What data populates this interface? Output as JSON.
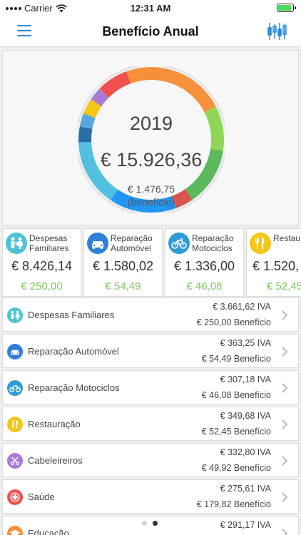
{
  "status_bar": {
    "carrier": "Carrier",
    "time": "12:31 AM"
  },
  "nav": {
    "title": "Benefício Anual",
    "menu_icon": "hamburger-menu-icon",
    "chart_icon": "candlestick-chart-icon"
  },
  "summary": {
    "year": "2019",
    "total": "€ 15.926,36",
    "benefit": "€ 1.476,75",
    "benefit_label": "(benefício)",
    "segments": [
      {
        "color": "#f7903a",
        "value": 23
      },
      {
        "color": "#8ed656",
        "value": 10
      },
      {
        "color": "#5cb85c",
        "value": 13
      },
      {
        "color": "#d9534f",
        "value": 4
      },
      {
        "color": "#2196f3",
        "value": 15
      },
      {
        "color": "#52c1e0",
        "value": 15
      },
      {
        "color": "#2c6fa6",
        "value": 3.5
      },
      {
        "color": "#59a9e0",
        "value": 3
      },
      {
        "color": "#f5c518",
        "value": 3.5
      },
      {
        "color": "#a97ad6",
        "value": 3
      },
      {
        "color": "#f0504f",
        "value": 7
      }
    ]
  },
  "cards": [
    {
      "name_l1": "Despesas",
      "name_l2": "Familiares",
      "amount": "€ 8.426,14",
      "benefit": "€ 250,00",
      "icon": "family-icon",
      "color": "#4ec3d3"
    },
    {
      "name_l1": "Reparação",
      "name_l2": "Automóvel",
      "amount": "€ 1.580,02",
      "benefit": "€ 54,49",
      "icon": "car-icon",
      "color": "#2e80d8"
    },
    {
      "name_l1": "Reparação",
      "name_l2": "Motociclos",
      "amount": "€ 1.336,00",
      "benefit": "€ 46,08",
      "icon": "bicycle-icon",
      "color": "#2e9bd8"
    },
    {
      "name_l1": "Restau",
      "name_l2": "",
      "amount": "€ 1.520,",
      "benefit": "€ 52,45",
      "icon": "cutlery-icon",
      "color": "#f5c518"
    }
  ],
  "list": [
    {
      "label": "Despesas Familiares",
      "iva": "€ 3.661,62 IVA",
      "benefit": "€ 250,00 Benefício",
      "icon": "family-icon",
      "color": "#4ec3d3"
    },
    {
      "label": "Reparação Automóvel",
      "iva": "€ 363,25 IVA",
      "benefit": "€ 54,49 Benefício",
      "icon": "car-icon",
      "color": "#2e80d8"
    },
    {
      "label": "Reparação Motociclos",
      "iva": "€ 307,18 IVA",
      "benefit": "€ 46,08 Benefício",
      "icon": "bicycle-icon",
      "color": "#2e9bd8"
    },
    {
      "label": "Restauração",
      "iva": "€ 349,68 IVA",
      "benefit": "€ 52,45 Benefício",
      "icon": "cutlery-icon",
      "color": "#f5c518"
    },
    {
      "label": "Cabeleireiros",
      "iva": "€ 332,80 IVA",
      "benefit": "€ 49,92 Benefício",
      "icon": "scissors-icon",
      "color": "#a97ad6"
    },
    {
      "label": "Saúde",
      "iva": "€ 275,61 IVA",
      "benefit": "€ 179,82 Benefício",
      "icon": "health-cross-icon",
      "color": "#f0504f"
    },
    {
      "label": "Educação",
      "iva": "€ 291,17 IVA",
      "benefit": "",
      "icon": "graduation-cap-icon",
      "color": "#f7903a"
    }
  ],
  "pager": {
    "count": 2,
    "active": 1
  }
}
